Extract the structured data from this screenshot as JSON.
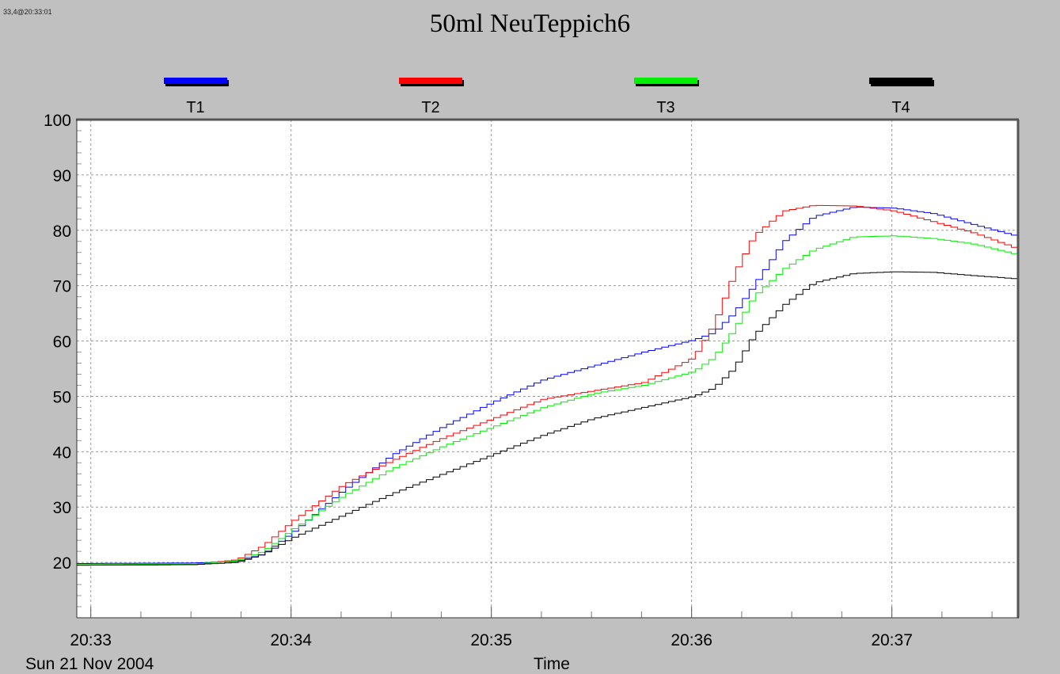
{
  "header": {
    "stamp": "33,4@20:33:01"
  },
  "chart_data": {
    "type": "line",
    "title": "50ml NeuTeppich6",
    "xlabel": "Time",
    "ylabel": "",
    "date_label": "Sun 21 Nov 2004",
    "x_unit": "minutes after 20:33:00",
    "xlim": [
      -0.07,
      4.63
    ],
    "ylim": [
      10,
      100
    ],
    "x_ticks": [
      {
        "x": 0,
        "label": "20:33"
      },
      {
        "x": 1,
        "label": "20:34"
      },
      {
        "x": 2,
        "label": "20:35"
      },
      {
        "x": 3,
        "label": "20:36"
      },
      {
        "x": 4,
        "label": "20:37"
      }
    ],
    "y_ticks": [
      20,
      30,
      40,
      50,
      60,
      70,
      80,
      90,
      100
    ],
    "grid": true,
    "legend_position": "top",
    "series": [
      {
        "name": "T1",
        "color": "#0000ff",
        "x": [
          -0.07,
          0.5,
          0.72,
          0.85,
          1.0,
          1.25,
          1.5,
          1.75,
          2.0,
          2.25,
          2.5,
          2.75,
          3.0,
          3.1,
          3.2,
          3.3,
          3.45,
          3.6,
          3.8,
          4.0,
          4.2,
          4.4,
          4.63
        ],
        "values": [
          19.8,
          19.9,
          20.2,
          21.5,
          25.5,
          33,
          39.5,
          44.5,
          49,
          53,
          55.5,
          58,
          60.2,
          61.5,
          65,
          70,
          78,
          82.5,
          84.2,
          84,
          83,
          81,
          78.8
        ]
      },
      {
        "name": "T2",
        "color": "#ff0000",
        "x": [
          -0.07,
          0.5,
          0.72,
          0.85,
          1.0,
          1.25,
          1.5,
          1.75,
          2.0,
          2.25,
          2.5,
          2.75,
          3.0,
          3.1,
          3.2,
          3.3,
          3.45,
          3.6,
          3.8,
          4.0,
          4.2,
          4.4,
          4.63
        ],
        "values": [
          19.5,
          19.6,
          20.5,
          23,
          27.5,
          34,
          38.5,
          42.5,
          46,
          49.5,
          51,
          52.5,
          57,
          63,
          72,
          79,
          83.5,
          84.5,
          84.4,
          83.5,
          81.5,
          79.5,
          76.5
        ]
      },
      {
        "name": "T3",
        "color": "#00ee00",
        "x": [
          -0.07,
          0.5,
          0.72,
          0.85,
          1.0,
          1.25,
          1.5,
          1.75,
          2.0,
          2.25,
          2.5,
          2.75,
          3.0,
          3.1,
          3.2,
          3.3,
          3.45,
          3.6,
          3.8,
          4.0,
          4.2,
          4.4,
          4.63
        ],
        "values": [
          19.6,
          19.7,
          20.3,
          22,
          26,
          32,
          37,
          41,
          44.5,
          48,
          50.5,
          52,
          54.5,
          57,
          62,
          68,
          73,
          76.5,
          78.8,
          79,
          78.5,
          77.5,
          75.5
        ]
      },
      {
        "name": "T4",
        "color": "#000000",
        "x": [
          -0.07,
          0.5,
          0.72,
          0.85,
          1.0,
          1.25,
          1.5,
          1.75,
          2.0,
          2.25,
          2.5,
          2.75,
          3.0,
          3.1,
          3.2,
          3.3,
          3.45,
          3.6,
          3.8,
          4.0,
          4.2,
          4.4,
          4.63
        ],
        "values": [
          19.5,
          19.6,
          20,
          21.5,
          24.5,
          28.5,
          32.5,
          36,
          39.5,
          43,
          46,
          48,
          50,
          51.5,
          55,
          61,
          66.5,
          70.5,
          72.2,
          72.5,
          72.4,
          71.8,
          71.2
        ]
      }
    ]
  }
}
